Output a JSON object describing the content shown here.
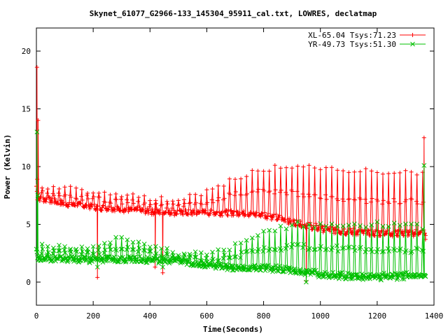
{
  "chart_data": {
    "type": "line",
    "title": "Skynet_61077_G2966-133_145304_95911_cal.txt, LOWRES, declatmap",
    "xlabel": "Time(Seconds)",
    "ylabel": "Power (Kelvin)",
    "xlim": [
      0,
      1400
    ],
    "ylim": [
      -2,
      22
    ],
    "xticks": [
      0,
      200,
      400,
      600,
      800,
      1000,
      1200,
      1400
    ],
    "yticks": [
      0,
      5,
      10,
      15,
      20
    ],
    "legend_position": "top-right",
    "series": [
      {
        "name": "XL-65.04 Tsys:71.23",
        "color": "#ff0000",
        "marker": "+",
        "baseline": [
          [
            0,
            7.3
          ],
          [
            100,
            6.8
          ],
          [
            200,
            6.5
          ],
          [
            300,
            6.3
          ],
          [
            400,
            6.1
          ],
          [
            500,
            6.0
          ],
          [
            600,
            6.0
          ],
          [
            700,
            6.0
          ],
          [
            800,
            5.8
          ],
          [
            900,
            5.2
          ],
          [
            1000,
            4.6
          ],
          [
            1100,
            4.3
          ],
          [
            1200,
            4.2
          ],
          [
            1300,
            4.2
          ],
          [
            1370,
            4.2
          ]
        ],
        "peaks": [
          [
            0,
            8.3
          ],
          [
            100,
            8.1
          ],
          [
            200,
            7.9
          ],
          [
            300,
            7.6
          ],
          [
            400,
            7.2
          ],
          [
            500,
            7.2
          ],
          [
            600,
            7.8
          ],
          [
            700,
            9.0
          ],
          [
            800,
            9.8
          ],
          [
            900,
            10.0
          ],
          [
            1000,
            9.8
          ],
          [
            1100,
            9.7
          ],
          [
            1200,
            9.5
          ],
          [
            1300,
            9.5
          ],
          [
            1370,
            9.3
          ]
        ],
        "period": 20,
        "spikes": [
          [
            2,
            18.6
          ],
          [
            3,
            8.9
          ],
          [
            6,
            14.0
          ],
          [
            215,
            0.4
          ],
          [
            418,
            1.3
          ],
          [
            445,
            0.8
          ],
          [
            950,
            0.1
          ],
          [
            1365,
            12.5
          ],
          [
            1370,
            3.7
          ]
        ]
      },
      {
        "name": "YR-49.73 Tsys:51.30",
        "color": "#00c000",
        "marker": "x",
        "baseline": [
          [
            0,
            2.1
          ],
          [
            100,
            2.0
          ],
          [
            200,
            1.9
          ],
          [
            300,
            2.0
          ],
          [
            400,
            1.9
          ],
          [
            500,
            1.8
          ],
          [
            600,
            1.5
          ],
          [
            700,
            1.2
          ],
          [
            800,
            1.2
          ],
          [
            900,
            1.0
          ],
          [
            1000,
            0.6
          ],
          [
            1100,
            0.5
          ],
          [
            1200,
            0.4
          ],
          [
            1300,
            0.5
          ],
          [
            1370,
            0.6
          ]
        ],
        "peaks": [
          [
            0,
            3.1
          ],
          [
            100,
            3.1
          ],
          [
            200,
            3.0
          ],
          [
            300,
            4.0
          ],
          [
            400,
            3.2
          ],
          [
            500,
            2.5
          ],
          [
            600,
            2.3
          ],
          [
            700,
            3.2
          ],
          [
            800,
            4.2
          ],
          [
            900,
            5.0
          ],
          [
            1000,
            5.0
          ],
          [
            1100,
            5.0
          ],
          [
            1200,
            5.0
          ],
          [
            1300,
            4.8
          ],
          [
            1370,
            4.8
          ]
        ],
        "period": 20,
        "spikes": [
          [
            2,
            13.0
          ],
          [
            5,
            7.5
          ],
          [
            215,
            1.3
          ],
          [
            445,
            1.3
          ],
          [
            950,
            0.0
          ],
          [
            1365,
            10.1
          ],
          [
            1370,
            0.5
          ]
        ]
      }
    ]
  }
}
